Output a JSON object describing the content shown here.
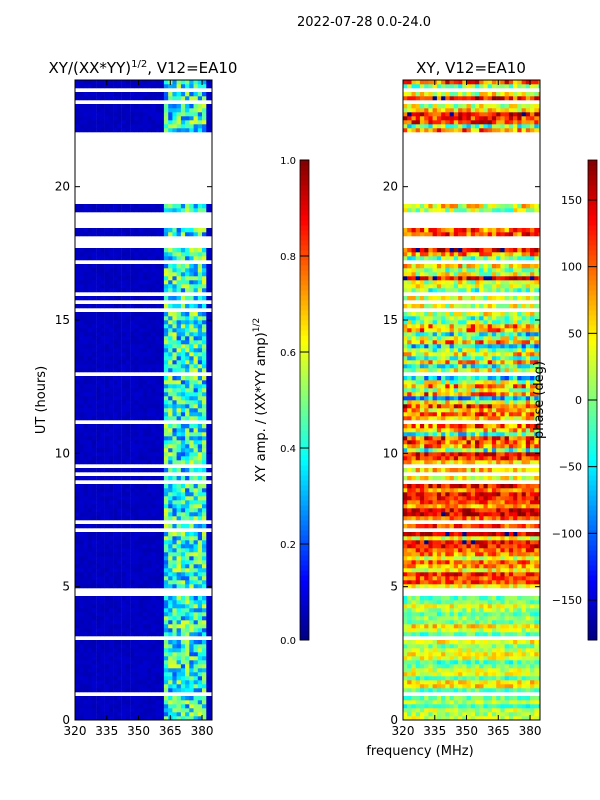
{
  "suptitle": "2022-07-28 0.0-24.0",
  "shared_xlabel": "frequency (MHz)",
  "chart_data": [
    {
      "type": "heatmap",
      "title": "XY/(XX*YY)",
      "title_sup": "1/2",
      "title_suffix": ", V12=EA10",
      "xlabel": "",
      "ylabel": "UT (hours)",
      "xlim": [
        320,
        384.7
      ],
      "ylim": [
        0,
        24
      ],
      "xticks": [
        "320",
        "335",
        "350",
        "365",
        "380"
      ],
      "xtick_values": [
        320,
        335,
        350,
        365,
        380
      ],
      "yticks": [
        "0",
        "5",
        "10",
        "15",
        "20"
      ],
      "ytick_values": [
        0,
        5,
        10,
        15,
        20
      ],
      "colorbar": {
        "label": "XY amp. / (XX*YY amp)",
        "label_sup": "1/2",
        "range": [
          0,
          1
        ],
        "ticks": [
          "0.0",
          "0.2",
          "0.4",
          "0.6",
          "0.8",
          "1.0"
        ],
        "tick_values": [
          0,
          0.2,
          0.4,
          0.6,
          0.8,
          1.0
        ],
        "colormap": "jet"
      },
      "background_level": 0.05,
      "active_band_mhz": [
        362,
        382
      ],
      "active_band_level": [
        0.2,
        0.6
      ],
      "blank_intervals_hours": [
        [
          19.2,
          22.0
        ],
        [
          15.8,
          16.05
        ],
        [
          18.35,
          19.0
        ],
        [
          17.6,
          18.1
        ]
      ]
    },
    {
      "type": "heatmap",
      "title": "XY, V12=EA10",
      "xlabel": "",
      "ylabel": "phase (deg)",
      "xlim": [
        320,
        384.7
      ],
      "ylim": [
        0,
        24
      ],
      "xticks": [
        "320",
        "335",
        "350",
        "365",
        "380"
      ],
      "xtick_values": [
        320,
        335,
        350,
        365,
        380
      ],
      "yticks": [
        "0",
        "5",
        "10",
        "15",
        "20"
      ],
      "ytick_values": [
        0,
        5,
        10,
        15,
        20
      ],
      "colorbar": {
        "label": "phase (deg)",
        "range": [
          -180,
          180
        ],
        "ticks": [
          "−150",
          "−100",
          "−50",
          "0",
          "50",
          "100",
          "150"
        ],
        "tick_values": [
          -150,
          -100,
          -50,
          0,
          50,
          100,
          150
        ],
        "colormap": "jet"
      },
      "phase_regimes": [
        {
          "hours": [
            0,
            5
          ],
          "mean_deg": 20,
          "spread_deg": 90
        },
        {
          "hours": [
            5,
            10
          ],
          "mean_deg": 90,
          "spread_deg": 120
        },
        {
          "hours": [
            10,
            15
          ],
          "mean_deg": 30,
          "spread_deg": 180
        },
        {
          "hours": [
            15,
            24
          ],
          "mean_deg": 60,
          "spread_deg": 160
        }
      ],
      "blank_intervals_hours": [
        [
          19.2,
          22.0
        ],
        [
          15.8,
          16.05
        ],
        [
          18.35,
          19.0
        ],
        [
          17.6,
          18.1
        ]
      ]
    }
  ]
}
